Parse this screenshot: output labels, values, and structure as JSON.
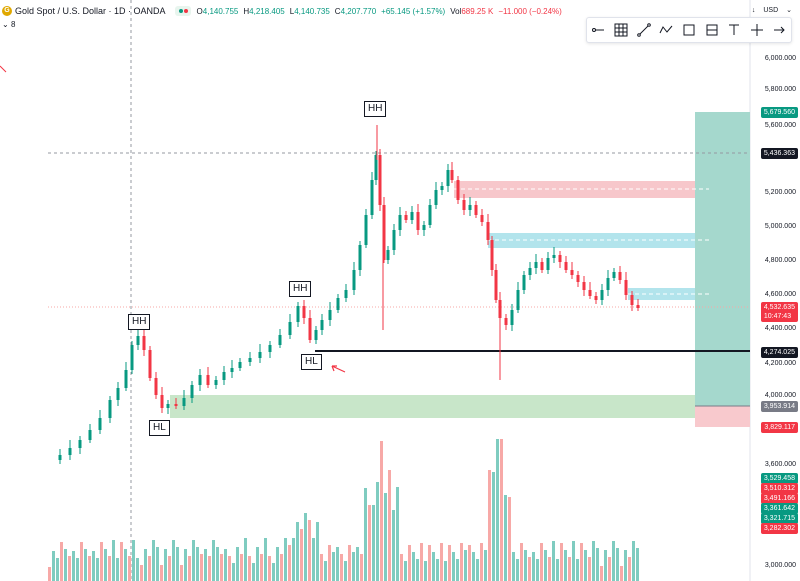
{
  "header": {
    "title": "Gold Spot / U.S. Dollar · 1D · OANDA",
    "ohlc": {
      "o": "4,140.755",
      "h": "4,218.405",
      "l": "4,140.735",
      "c": "4,207.770",
      "chg": "+65.145 (+1.57%)",
      "vol_label": "Vol",
      "vol": "689.25 K",
      "vol_chg": "−11.000 (−0.24%)"
    },
    "sub_indicator": "8",
    "currency": "USD"
  },
  "toolbar": [
    "horizontal-ray-icon",
    "grid-icon",
    "trend-line-icon",
    "path-icon",
    "rectangle-icon",
    "position-icon",
    "text-icon",
    "crosshair-icon",
    "arrow-icon"
  ],
  "price_axis": [
    "6,000.000",
    "5,800.000",
    "5,600.000",
    "5,200.000",
    "5,000.000",
    "4,800.000",
    "4,600.000",
    "4,400.000",
    "4,200.000",
    "4,000.000",
    "3,600.000",
    "3,000.000"
  ],
  "price_labels": [
    {
      "text": "5,679.560",
      "color": "#089981"
    },
    {
      "text": "5,436.363",
      "color": "#131722"
    },
    {
      "text": "4,532.635\n10:47:43",
      "color": "#f23645"
    },
    {
      "text": "4,274.025",
      "color": "#131722"
    },
    {
      "text": "3,953.914",
      "color": "#787b86"
    },
    {
      "text": "3,829.117",
      "color": "#f23645"
    },
    {
      "text": "3,529.458",
      "color": "#089981"
    },
    {
      "text": "3,510.312",
      "color": "#f23645"
    },
    {
      "text": "3,491.166",
      "color": "#f23645"
    },
    {
      "text": "3,361.642",
      "color": "#089981"
    },
    {
      "text": "3,321.715",
      "color": "#089981"
    },
    {
      "text": "3,282.302",
      "color": "#f23645"
    }
  ],
  "patterns": [
    "HH",
    "HL",
    "HH",
    "HL",
    "HH"
  ],
  "colors": {
    "up": "#089981",
    "down": "#f23645",
    "volUp": "#7fccc0",
    "volDown": "#f7a9a7"
  }
}
